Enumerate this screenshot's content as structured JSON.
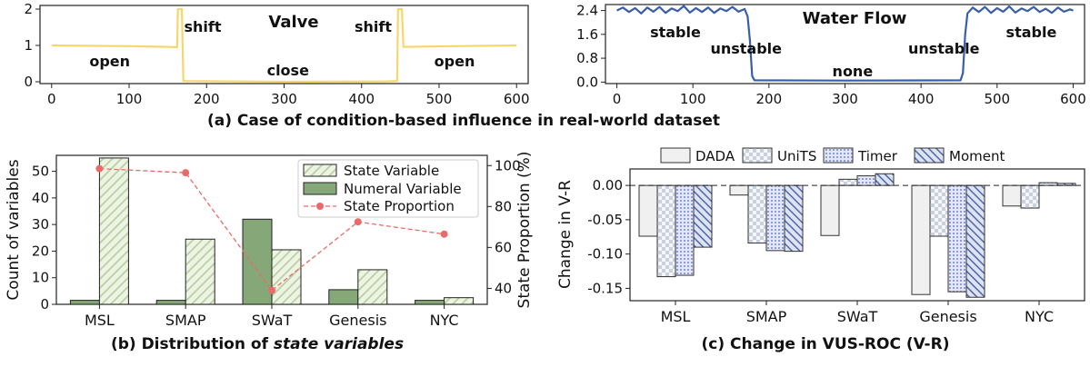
{
  "captions": {
    "a": "(a) Case of condition-based influence in real-world dataset",
    "b_prefix": "(b) Distribution of ",
    "b_italic": "state variables",
    "c": "(c) Change in VUS-ROC (V-R)"
  },
  "chart_data": [
    {
      "id": "valve",
      "type": "line",
      "title": "Valve",
      "color": "#f5d76e",
      "x_ticks": [
        0,
        100,
        200,
        300,
        400,
        500,
        600
      ],
      "y_ticks": [
        0,
        1,
        2
      ],
      "xlim": [
        -15,
        615
      ],
      "ylim": [
        -0.05,
        2.1
      ],
      "points": [
        [
          0,
          1.0
        ],
        [
          100,
          0.98
        ],
        [
          150,
          0.96
        ],
        [
          162,
          0.95
        ],
        [
          163,
          2.0
        ],
        [
          168,
          2.0
        ],
        [
          170,
          0.02
        ],
        [
          300,
          0.0
        ],
        [
          430,
          0.01
        ],
        [
          446,
          0.02
        ],
        [
          447,
          2.0
        ],
        [
          452,
          2.0
        ],
        [
          454,
          0.96
        ],
        [
          520,
          0.98
        ],
        [
          600,
          1.0
        ]
      ],
      "annotations": [
        {
          "text": "open",
          "x": 75,
          "y": 0.55
        },
        {
          "text": "shift",
          "x": 195,
          "y": 1.5
        },
        {
          "text": "close",
          "x": 305,
          "y": 0.3
        },
        {
          "text": "shift",
          "x": 415,
          "y": 1.5
        },
        {
          "text": "open",
          "x": 520,
          "y": 0.55
        }
      ]
    },
    {
      "id": "water",
      "type": "line",
      "title": "Water Flow",
      "color": "#3a5ea6",
      "x_ticks": [
        0,
        100,
        200,
        300,
        400,
        500,
        600
      ],
      "y_ticks": [
        0.0,
        0.8,
        1.6,
        2.4
      ],
      "y_tick_labels": [
        "0.0",
        "0.8",
        "1.6",
        "2.4"
      ],
      "xlim": [
        -15,
        615
      ],
      "ylim": [
        -0.05,
        2.6
      ],
      "points": [
        [
          0,
          2.4
        ],
        [
          8,
          2.5
        ],
        [
          16,
          2.35
        ],
        [
          24,
          2.48
        ],
        [
          32,
          2.3
        ],
        [
          40,
          2.5
        ],
        [
          48,
          2.36
        ],
        [
          56,
          2.52
        ],
        [
          64,
          2.32
        ],
        [
          72,
          2.47
        ],
        [
          80,
          2.38
        ],
        [
          88,
          2.55
        ],
        [
          96,
          2.33
        ],
        [
          104,
          2.48
        ],
        [
          112,
          2.35
        ],
        [
          120,
          2.5
        ],
        [
          128,
          2.32
        ],
        [
          136,
          2.47
        ],
        [
          144,
          2.38
        ],
        [
          152,
          2.52
        ],
        [
          160,
          2.36
        ],
        [
          168,
          2.45
        ],
        [
          172,
          2.2
        ],
        [
          175,
          1.4
        ],
        [
          178,
          0.2
        ],
        [
          181,
          0.06
        ],
        [
          300,
          0.05
        ],
        [
          452,
          0.06
        ],
        [
          455,
          0.3
        ],
        [
          458,
          1.6
        ],
        [
          461,
          2.3
        ],
        [
          468,
          2.5
        ],
        [
          476,
          2.35
        ],
        [
          484,
          2.52
        ],
        [
          492,
          2.32
        ],
        [
          500,
          2.48
        ],
        [
          508,
          2.36
        ],
        [
          516,
          2.54
        ],
        [
          524,
          2.33
        ],
        [
          532,
          2.47
        ],
        [
          540,
          2.38
        ],
        [
          548,
          2.52
        ],
        [
          556,
          2.35
        ],
        [
          564,
          2.46
        ],
        [
          572,
          2.32
        ],
        [
          580,
          2.5
        ],
        [
          588,
          2.36
        ],
        [
          596,
          2.44
        ],
        [
          600,
          2.4
        ]
      ],
      "annotations": [
        {
          "text": "stable",
          "x": 77,
          "y": 1.65
        },
        {
          "text": "unstable",
          "x": 170,
          "y": 1.1
        },
        {
          "text": "none",
          "x": 310,
          "y": 0.35
        },
        {
          "text": "unstable",
          "x": 430,
          "y": 1.1
        },
        {
          "text": "stable",
          "x": 545,
          "y": 1.65
        }
      ]
    },
    {
      "id": "distribution",
      "type": "bar",
      "categories": [
        "MSL",
        "SMAP",
        "SWaT",
        "Genesis",
        "NYC"
      ],
      "ylabel": "Count of variables",
      "y2label": "State Proportion (%)",
      "ylim": [
        0,
        56
      ],
      "y_ticks": [
        0,
        10,
        20,
        30,
        40,
        50
      ],
      "y2lim": [
        32.2,
        105
      ],
      "y2_ticks": [
        40,
        60,
        80,
        100
      ],
      "series": [
        {
          "name": "State Variable",
          "values": [
            55,
            24.5,
            20.5,
            13,
            2.5
          ],
          "color": "#d9e6c8"
        },
        {
          "name": "Numeral Variable",
          "values": [
            1.5,
            1.5,
            32,
            5.5,
            1.5
          ],
          "color": "#86a878"
        },
        {
          "name": "State Proportion",
          "values": [
            98.5,
            96.5,
            39,
            72.5,
            66.5
          ],
          "color": "#e86a6a",
          "axis": "right"
        }
      ],
      "legend": "top-right"
    },
    {
      "id": "vus",
      "type": "bar",
      "categories": [
        "MSL",
        "SMAP",
        "SWaT",
        "Genesis",
        "NYC"
      ],
      "ylabel": "Change in V-R",
      "ylim": [
        -0.168,
        0.024
      ],
      "y_ticks": [
        -0.15,
        -0.1,
        -0.05,
        0.0
      ],
      "y_tick_labels": [
        "-0.15",
        "-0.10",
        "-0.05",
        "0.00"
      ],
      "series": [
        {
          "name": "DADA",
          "values": [
            -0.074,
            -0.014,
            -0.073,
            -0.159,
            -0.03
          ],
          "color": "#f0f0f0"
        },
        {
          "name": "UniTS",
          "values": [
            -0.133,
            -0.084,
            0.009,
            -0.074,
            -0.033
          ],
          "color": "#d8dfe8"
        },
        {
          "name": "Timer",
          "values": [
            -0.131,
            -0.095,
            0.014,
            -0.155,
            0.004
          ],
          "color": "#c0c8e6"
        },
        {
          "name": "Moment",
          "values": [
            -0.09,
            -0.096,
            0.017,
            -0.163,
            0.003
          ],
          "color": "#6d86c0"
        }
      ],
      "legend": "top"
    }
  ]
}
